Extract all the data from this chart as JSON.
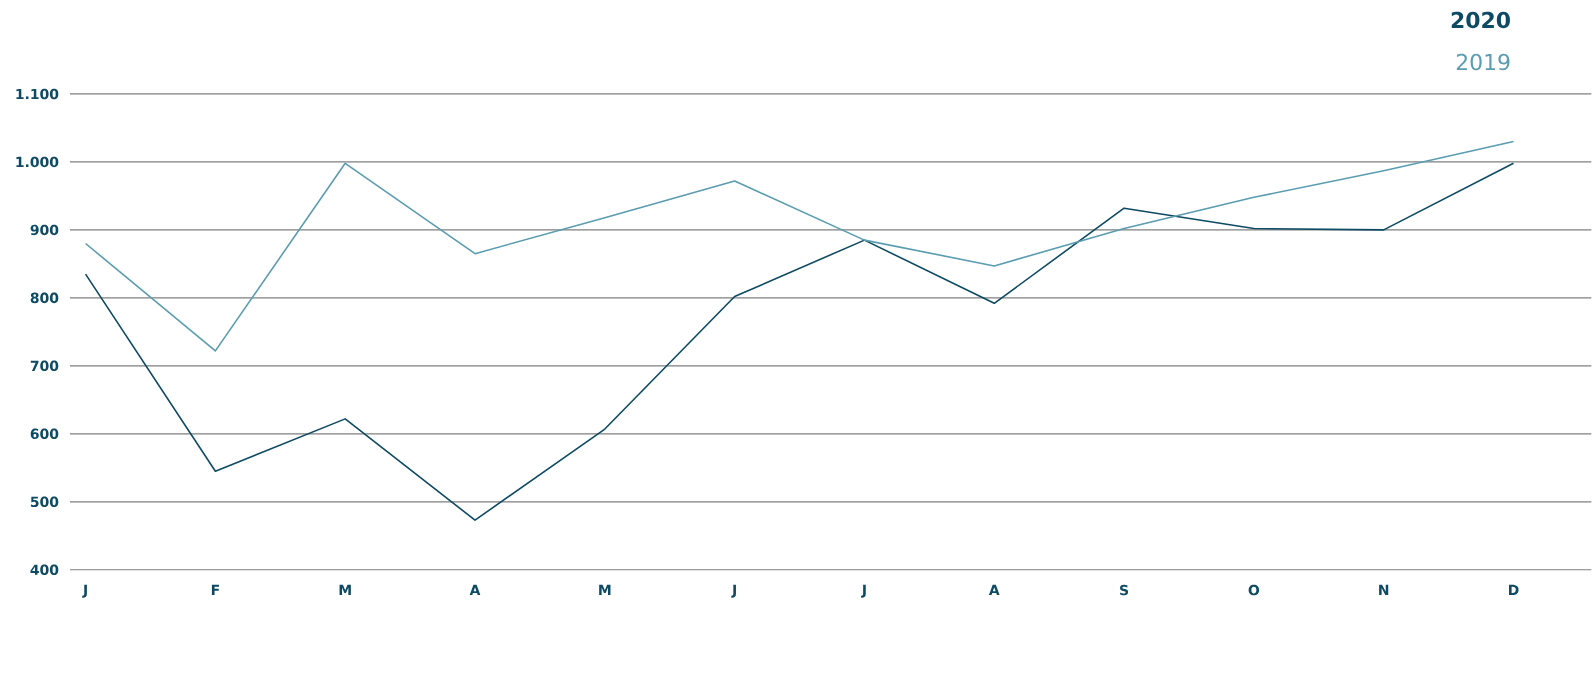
{
  "chart_data": {
    "type": "line",
    "categories": [
      "J",
      "F",
      "M",
      "A",
      "M",
      "J",
      "J",
      "A",
      "S",
      "O",
      "N",
      "D"
    ],
    "series": [
      {
        "name": "2020",
        "color": "#0d4a63",
        "values": [
          835,
          545,
          622,
          473,
          607,
          802,
          885,
          792,
          932,
          902,
          900,
          998
        ]
      },
      {
        "name": "2019",
        "color": "#5a9cb0",
        "values": [
          880,
          722,
          998,
          865,
          918,
          972,
          885,
          847,
          902,
          948,
          987,
          1030
        ]
      }
    ],
    "ylim": [
      400,
      1100
    ],
    "yticks": [
      400,
      500,
      600,
      700,
      800,
      900,
      {
        "value": 1000,
        "label": "1.000"
      },
      {
        "value": 1100,
        "label": "1.100"
      }
    ],
    "grid": "y",
    "legend": "top right",
    "line_style": "solid",
    "marker": "none"
  }
}
